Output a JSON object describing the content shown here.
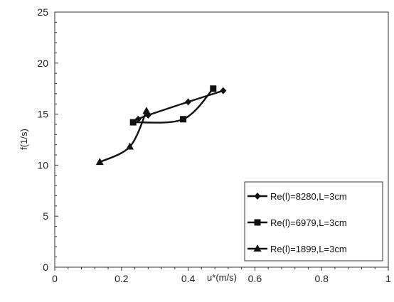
{
  "chart_data": {
    "type": "line",
    "xlabel": "u*(m/s)",
    "ylabel": "f(1/s)",
    "xlim": [
      0,
      1
    ],
    "ylim": [
      0,
      25
    ],
    "x_ticks": [
      "0",
      "0.2",
      "0.4",
      "0.6",
      "0.8",
      "1"
    ],
    "y_ticks": [
      "0",
      "5",
      "10",
      "15",
      "20",
      "25"
    ],
    "grid": false,
    "legend_position": "bottom-right",
    "series": [
      {
        "name": "Re(l)=8280,L=3cm",
        "marker": "diamond",
        "points": [
          [
            0.25,
            14.5
          ],
          [
            0.28,
            14.9
          ],
          [
            0.4,
            16.2
          ],
          [
            0.505,
            17.3
          ]
        ]
      },
      {
        "name": "Re(l)=6979,L=3cm",
        "marker": "square",
        "points": [
          [
            0.235,
            14.2
          ],
          [
            0.385,
            14.5
          ],
          [
            0.475,
            17.5
          ]
        ]
      },
      {
        "name": "Re(l)=1899,L=3cm",
        "marker": "triangle",
        "points": [
          [
            0.135,
            10.3
          ],
          [
            0.225,
            11.8
          ],
          [
            0.275,
            15.3
          ]
        ]
      }
    ]
  }
}
